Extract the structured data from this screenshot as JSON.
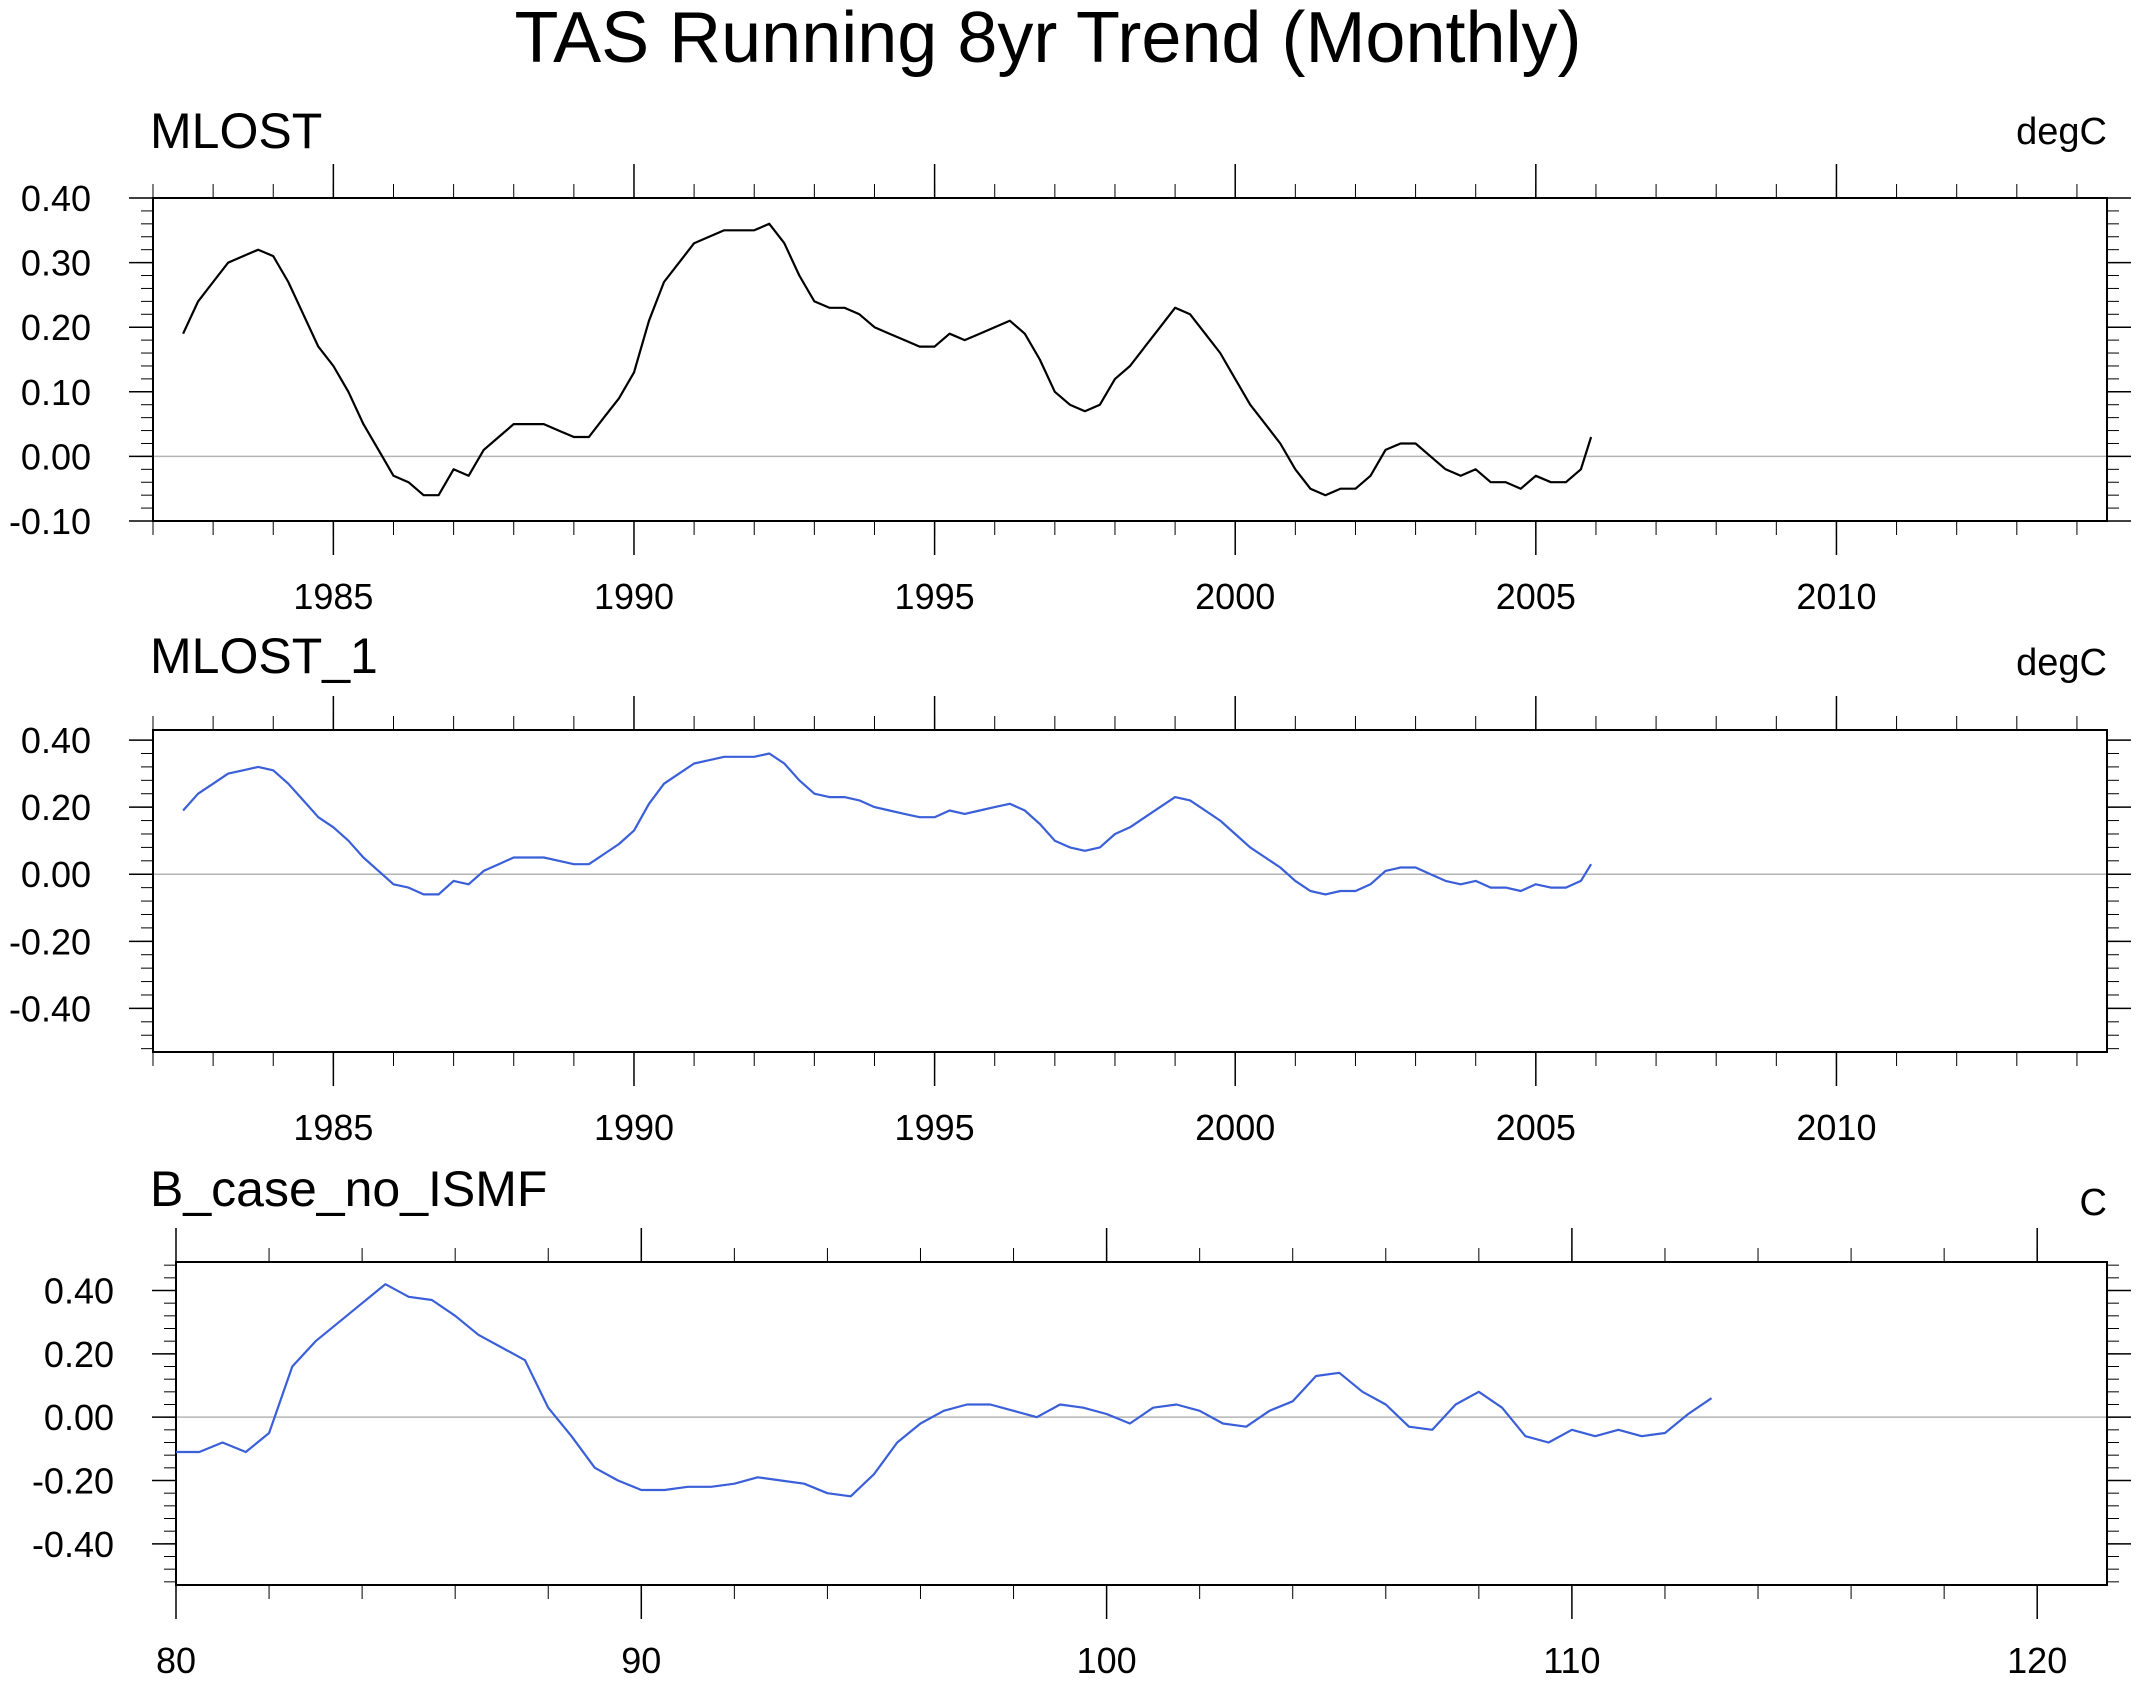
{
  "title": "TAS Running 8yr Trend (Monthly)",
  "chart_data": [
    {
      "type": "line",
      "title": "MLOST",
      "units": "degC",
      "xlim": [
        1982.0,
        2014.5
      ],
      "ylim": [
        -0.1,
        0.4
      ],
      "xticks": [
        1985,
        1990,
        1995,
        2000,
        2005,
        2010
      ],
      "xtick_labels": [
        "1985",
        "1990",
        "1995",
        "2000",
        "2005",
        "2010"
      ],
      "yticks": [
        -0.1,
        0.0,
        0.1,
        0.2,
        0.3,
        0.4
      ],
      "ytick_labels": [
        "-0.10",
        "0.00",
        "0.10",
        "0.20",
        "0.30",
        "0.40"
      ],
      "zero_line": true,
      "line_color": "#000000",
      "x": [
        1982.5,
        1982.75,
        1983.0,
        1983.25,
        1983.5,
        1983.75,
        1984.0,
        1984.25,
        1984.5,
        1984.75,
        1985.0,
        1985.25,
        1985.5,
        1985.75,
        1986.0,
        1986.25,
        1986.5,
        1986.75,
        1987.0,
        1987.25,
        1987.5,
        1987.75,
        1988.0,
        1988.25,
        1988.5,
        1988.75,
        1989.0,
        1989.25,
        1989.5,
        1989.75,
        1990.0,
        1990.25,
        1990.5,
        1990.75,
        1991.0,
        1991.25,
        1991.5,
        1991.75,
        1992.0,
        1992.25,
        1992.5,
        1992.75,
        1993.0,
        1993.25,
        1993.5,
        1993.75,
        1994.0,
        1994.25,
        1994.5,
        1994.75,
        1995.0,
        1995.25,
        1995.5,
        1995.75,
        1996.0,
        1996.25,
        1996.5,
        1996.75,
        1997.0,
        1997.25,
        1997.5,
        1997.75,
        1998.0,
        1998.25,
        1998.5,
        1998.75,
        1999.0,
        1999.25,
        1999.5,
        1999.75,
        2000.0,
        2000.25,
        2000.5,
        2000.75,
        2001.0,
        2001.25,
        2001.5,
        2001.75,
        2002.0,
        2002.25,
        2002.5,
        2002.75,
        2003.0,
        2003.25,
        2003.5,
        2003.75,
        2004.0,
        2004.25,
        2004.5,
        2004.75,
        2005.0,
        2005.25,
        2005.5,
        2005.75,
        2005.92
      ],
      "y": [
        0.19,
        0.24,
        0.27,
        0.3,
        0.31,
        0.32,
        0.31,
        0.27,
        0.22,
        0.17,
        0.14,
        0.1,
        0.05,
        0.01,
        -0.03,
        -0.04,
        -0.06,
        -0.06,
        -0.02,
        -0.03,
        0.01,
        0.03,
        0.05,
        0.05,
        0.05,
        0.04,
        0.03,
        0.03,
        0.06,
        0.09,
        0.13,
        0.21,
        0.27,
        0.3,
        0.33,
        0.34,
        0.35,
        0.35,
        0.35,
        0.36,
        0.33,
        0.28,
        0.24,
        0.23,
        0.23,
        0.22,
        0.2,
        0.19,
        0.18,
        0.17,
        0.17,
        0.19,
        0.18,
        0.19,
        0.2,
        0.21,
        0.19,
        0.15,
        0.1,
        0.08,
        0.07,
        0.08,
        0.12,
        0.14,
        0.17,
        0.2,
        0.23,
        0.22,
        0.19,
        0.16,
        0.12,
        0.08,
        0.05,
        0.02,
        -0.02,
        -0.05,
        -0.06,
        -0.05,
        -0.05,
        -0.03,
        0.01,
        0.02,
        0.02,
        0.0,
        -0.02,
        -0.03,
        -0.02,
        -0.04,
        -0.04,
        -0.05,
        -0.03,
        -0.04,
        -0.04,
        -0.02,
        0.03
      ]
    },
    {
      "type": "line",
      "title": "MLOST_1",
      "units": "degC",
      "xlim": [
        1982.0,
        2014.5
      ],
      "ylim": [
        -0.53,
        0.43
      ],
      "xticks": [
        1985,
        1990,
        1995,
        2000,
        2005,
        2010
      ],
      "xtick_labels": [
        "1985",
        "1990",
        "1995",
        "2000",
        "2005",
        "2010"
      ],
      "yticks": [
        -0.4,
        -0.2,
        0.0,
        0.2,
        0.4
      ],
      "ytick_labels": [
        "-0.40",
        "-0.20",
        "0.00",
        "0.20",
        "0.40"
      ],
      "zero_line": true,
      "line_color": "#3a5fd8",
      "x": [
        1982.5,
        1982.75,
        1983.0,
        1983.25,
        1983.5,
        1983.75,
        1984.0,
        1984.25,
        1984.5,
        1984.75,
        1985.0,
        1985.25,
        1985.5,
        1985.75,
        1986.0,
        1986.25,
        1986.5,
        1986.75,
        1987.0,
        1987.25,
        1987.5,
        1987.75,
        1988.0,
        1988.25,
        1988.5,
        1988.75,
        1989.0,
        1989.25,
        1989.5,
        1989.75,
        1990.0,
        1990.25,
        1990.5,
        1990.75,
        1991.0,
        1991.25,
        1991.5,
        1991.75,
        1992.0,
        1992.25,
        1992.5,
        1992.75,
        1993.0,
        1993.25,
        1993.5,
        1993.75,
        1994.0,
        1994.25,
        1994.5,
        1994.75,
        1995.0,
        1995.25,
        1995.5,
        1995.75,
        1996.0,
        1996.25,
        1996.5,
        1996.75,
        1997.0,
        1997.25,
        1997.5,
        1997.75,
        1998.0,
        1998.25,
        1998.5,
        1998.75,
        1999.0,
        1999.25,
        1999.5,
        1999.75,
        2000.0,
        2000.25,
        2000.5,
        2000.75,
        2001.0,
        2001.25,
        2001.5,
        2001.75,
        2002.0,
        2002.25,
        2002.5,
        2002.75,
        2003.0,
        2003.25,
        2003.5,
        2003.75,
        2004.0,
        2004.25,
        2004.5,
        2004.75,
        2005.0,
        2005.25,
        2005.5,
        2005.75,
        2005.92
      ],
      "y": [
        0.19,
        0.24,
        0.27,
        0.3,
        0.31,
        0.32,
        0.31,
        0.27,
        0.22,
        0.17,
        0.14,
        0.1,
        0.05,
        0.01,
        -0.03,
        -0.04,
        -0.06,
        -0.06,
        -0.02,
        -0.03,
        0.01,
        0.03,
        0.05,
        0.05,
        0.05,
        0.04,
        0.03,
        0.03,
        0.06,
        0.09,
        0.13,
        0.21,
        0.27,
        0.3,
        0.33,
        0.34,
        0.35,
        0.35,
        0.35,
        0.36,
        0.33,
        0.28,
        0.24,
        0.23,
        0.23,
        0.22,
        0.2,
        0.19,
        0.18,
        0.17,
        0.17,
        0.19,
        0.18,
        0.19,
        0.2,
        0.21,
        0.19,
        0.15,
        0.1,
        0.08,
        0.07,
        0.08,
        0.12,
        0.14,
        0.17,
        0.2,
        0.23,
        0.22,
        0.19,
        0.16,
        0.12,
        0.08,
        0.05,
        0.02,
        -0.02,
        -0.05,
        -0.06,
        -0.05,
        -0.05,
        -0.03,
        0.01,
        0.02,
        0.02,
        0.0,
        -0.02,
        -0.03,
        -0.02,
        -0.04,
        -0.04,
        -0.05,
        -0.03,
        -0.04,
        -0.04,
        -0.02,
        0.03
      ]
    },
    {
      "type": "line",
      "title": "B_case_no_ISMF",
      "units": "C",
      "xlim": [
        80,
        121.5
      ],
      "ylim": [
        -0.53,
        0.49
      ],
      "xticks": [
        80,
        90,
        100,
        110,
        120
      ],
      "xtick_labels": [
        "80",
        "90",
        "100",
        "110",
        "120"
      ],
      "yticks": [
        -0.4,
        -0.2,
        0.0,
        0.2,
        0.4
      ],
      "ytick_labels": [
        "-0.40",
        "-0.20",
        "0.00",
        "0.20",
        "0.40"
      ],
      "zero_line": true,
      "line_color": "#3a5fd8",
      "x": [
        80,
        80.5,
        81,
        81.5,
        82,
        82.5,
        83,
        83.5,
        84,
        84.5,
        85,
        85.5,
        86,
        86.5,
        87,
        87.5,
        88,
        88.5,
        89,
        89.5,
        90,
        90.5,
        91,
        91.5,
        92,
        92.5,
        93,
        93.5,
        94,
        94.5,
        95,
        95.5,
        96,
        96.5,
        97,
        97.5,
        98,
        98.5,
        99,
        99.5,
        100,
        100.5,
        101,
        101.5,
        102,
        102.5,
        103,
        103.5,
        104,
        104.5,
        105,
        105.5,
        106,
        106.5,
        107,
        107.5,
        108,
        108.5,
        109,
        109.5,
        110,
        110.5,
        111,
        111.5,
        112,
        112.5,
        113
      ],
      "y": [
        -0.11,
        -0.11,
        -0.08,
        -0.11,
        -0.05,
        0.16,
        0.24,
        0.3,
        0.36,
        0.42,
        0.38,
        0.37,
        0.32,
        0.26,
        0.22,
        0.18,
        0.03,
        -0.06,
        -0.16,
        -0.2,
        -0.23,
        -0.23,
        -0.22,
        -0.22,
        -0.21,
        -0.19,
        -0.2,
        -0.21,
        -0.24,
        -0.25,
        -0.18,
        -0.08,
        -0.02,
        0.02,
        0.04,
        0.04,
        0.02,
        0.0,
        0.04,
        0.03,
        0.01,
        -0.02,
        0.03,
        0.04,
        0.02,
        -0.02,
        -0.03,
        0.02,
        0.05,
        0.13,
        0.14,
        0.08,
        0.04,
        -0.03,
        -0.04,
        0.04,
        0.08,
        0.03,
        -0.06,
        -0.08,
        -0.04,
        -0.06,
        -0.04,
        -0.06,
        -0.05,
        0.01,
        0.06
      ]
    }
  ]
}
